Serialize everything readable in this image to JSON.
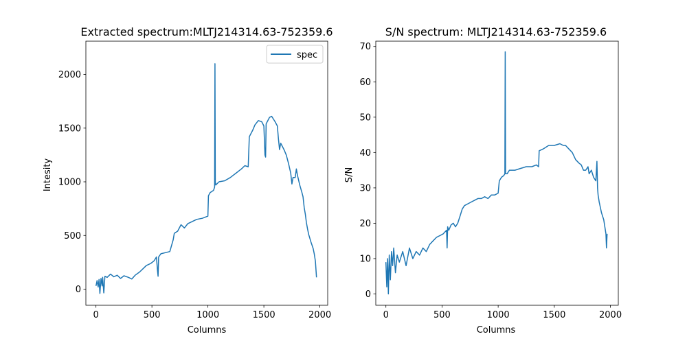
{
  "chart_data": [
    {
      "type": "line",
      "title": "Extracted spectrum:MLTJ214314.63-752359.6",
      "xlabel": "Columns",
      "ylabel": "Intesity",
      "xlim": [
        -90,
        2070
      ],
      "ylim": [
        -150,
        2310
      ],
      "xticks": [
        0,
        500,
        1000,
        1500,
        2000
      ],
      "yticks": [
        0,
        500,
        1000,
        1500,
        2000
      ],
      "legend": {
        "placement": "top-right",
        "entries": [
          "spec"
        ]
      },
      "grid": false,
      "color": "#1f77b4",
      "series": [
        {
          "name": "spec",
          "points": [
            [
              0,
              30
            ],
            [
              10,
              80
            ],
            [
              20,
              20
            ],
            [
              28,
              90
            ],
            [
              35,
              -40
            ],
            [
              45,
              100
            ],
            [
              55,
              30
            ],
            [
              60,
              110
            ],
            [
              70,
              -35
            ],
            [
              80,
              120
            ],
            [
              100,
              110
            ],
            [
              130,
              140
            ],
            [
              160,
              115
            ],
            [
              190,
              130
            ],
            [
              220,
              100
            ],
            [
              250,
              125
            ],
            [
              290,
              110
            ],
            [
              320,
              95
            ],
            [
              350,
              130
            ],
            [
              390,
              160
            ],
            [
              420,
              190
            ],
            [
              450,
              220
            ],
            [
              490,
              240
            ],
            [
              520,
              265
            ],
            [
              540,
              300
            ],
            [
              550,
              170
            ],
            [
              555,
              120
            ],
            [
              560,
              300
            ],
            [
              580,
              330
            ],
            [
              620,
              340
            ],
            [
              660,
              350
            ],
            [
              690,
              460
            ],
            [
              700,
              520
            ],
            [
              730,
              540
            ],
            [
              760,
              600
            ],
            [
              790,
              570
            ],
            [
              820,
              610
            ],
            [
              860,
              630
            ],
            [
              900,
              650
            ],
            [
              950,
              660
            ],
            [
              1000,
              680
            ],
            [
              1005,
              870
            ],
            [
              1020,
              900
            ],
            [
              1050,
              920
            ],
            [
              1060,
              950
            ],
            [
              1063,
              2100
            ],
            [
              1066,
              1000
            ],
            [
              1070,
              970
            ],
            [
              1100,
              1000
            ],
            [
              1150,
              1010
            ],
            [
              1200,
              1040
            ],
            [
              1250,
              1080
            ],
            [
              1300,
              1120
            ],
            [
              1330,
              1150
            ],
            [
              1360,
              1140
            ],
            [
              1370,
              1420
            ],
            [
              1400,
              1480
            ],
            [
              1420,
              1530
            ],
            [
              1450,
              1570
            ],
            [
              1480,
              1560
            ],
            [
              1500,
              1520
            ],
            [
              1510,
              1250
            ],
            [
              1515,
              1230
            ],
            [
              1520,
              1540
            ],
            [
              1550,
              1600
            ],
            [
              1570,
              1610
            ],
            [
              1600,
              1560
            ],
            [
              1620,
              1520
            ],
            [
              1630,
              1400
            ],
            [
              1640,
              1300
            ],
            [
              1650,
              1360
            ],
            [
              1680,
              1300
            ],
            [
              1700,
              1250
            ],
            [
              1720,
              1170
            ],
            [
              1740,
              1080
            ],
            [
              1750,
              980
            ],
            [
              1760,
              1040
            ],
            [
              1780,
              1040
            ],
            [
              1790,
              1120
            ],
            [
              1800,
              1060
            ],
            [
              1820,
              970
            ],
            [
              1840,
              900
            ],
            [
              1850,
              860
            ],
            [
              1860,
              760
            ],
            [
              1870,
              700
            ],
            [
              1880,
              620
            ],
            [
              1890,
              560
            ],
            [
              1900,
              510
            ],
            [
              1920,
              440
            ],
            [
              1940,
              380
            ],
            [
              1950,
              330
            ],
            [
              1960,
              260
            ],
            [
              1970,
              110
            ]
          ]
        }
      ]
    },
    {
      "type": "line",
      "title": "S/N spectrum: MLTJ214314.63-752359.6",
      "xlabel": "Columns",
      "ylabel": "S/N",
      "xlim": [
        -90,
        2070
      ],
      "ylim": [
        -3.2,
        71.5
      ],
      "xticks": [
        0,
        500,
        1000,
        1500,
        2000
      ],
      "yticks": [
        0,
        10,
        20,
        30,
        40,
        50,
        60,
        70
      ],
      "grid": false,
      "color": "#1f77b4",
      "series": [
        {
          "name": "",
          "points": [
            [
              0,
              9
            ],
            [
              8,
              2
            ],
            [
              15,
              10
            ],
            [
              22,
              0
            ],
            [
              30,
              11
            ],
            [
              40,
              4
            ],
            [
              50,
              12
            ],
            [
              60,
              8
            ],
            [
              70,
              13
            ],
            [
              85,
              6
            ],
            [
              100,
              11
            ],
            [
              120,
              9
            ],
            [
              150,
              12
            ],
            [
              180,
              8
            ],
            [
              210,
              13
            ],
            [
              240,
              10
            ],
            [
              270,
              12
            ],
            [
              300,
              11
            ],
            [
              330,
              13
            ],
            [
              360,
              12
            ],
            [
              390,
              14
            ],
            [
              420,
              15
            ],
            [
              450,
              16
            ],
            [
              480,
              16.5
            ],
            [
              510,
              17
            ],
            [
              540,
              18
            ],
            [
              545,
              13
            ],
            [
              550,
              19
            ],
            [
              560,
              18
            ],
            [
              580,
              19.5
            ],
            [
              600,
              20
            ],
            [
              620,
              19
            ],
            [
              640,
              20
            ],
            [
              660,
              22
            ],
            [
              680,
              24
            ],
            [
              700,
              25
            ],
            [
              730,
              25.5
            ],
            [
              760,
              26
            ],
            [
              790,
              26.5
            ],
            [
              820,
              27
            ],
            [
              850,
              27
            ],
            [
              880,
              27.5
            ],
            [
              910,
              27
            ],
            [
              940,
              28
            ],
            [
              970,
              28
            ],
            [
              1000,
              28.5
            ],
            [
              1010,
              32
            ],
            [
              1030,
              33
            ],
            [
              1050,
              33.5
            ],
            [
              1060,
              34
            ],
            [
              1063,
              68.5
            ],
            [
              1066,
              34
            ],
            [
              1080,
              34
            ],
            [
              1100,
              35
            ],
            [
              1150,
              35
            ],
            [
              1200,
              35.5
            ],
            [
              1250,
              36
            ],
            [
              1300,
              36
            ],
            [
              1340,
              36.5
            ],
            [
              1360,
              36
            ],
            [
              1365,
              40.5
            ],
            [
              1400,
              41
            ],
            [
              1450,
              42
            ],
            [
              1500,
              42
            ],
            [
              1550,
              42.5
            ],
            [
              1580,
              42
            ],
            [
              1600,
              42
            ],
            [
              1630,
              41
            ],
            [
              1660,
              40
            ],
            [
              1690,
              38
            ],
            [
              1720,
              37
            ],
            [
              1740,
              36.5
            ],
            [
              1760,
              35
            ],
            [
              1780,
              35
            ],
            [
              1800,
              36
            ],
            [
              1810,
              34
            ],
            [
              1830,
              35
            ],
            [
              1850,
              33
            ],
            [
              1870,
              32
            ],
            [
              1880,
              37.5
            ],
            [
              1885,
              30
            ],
            [
              1890,
              28
            ],
            [
              1900,
              26
            ],
            [
              1920,
              23
            ],
            [
              1940,
              21
            ],
            [
              1950,
              19
            ],
            [
              1960,
              17
            ],
            [
              1965,
              13
            ],
            [
              1970,
              17
            ]
          ]
        }
      ]
    }
  ]
}
